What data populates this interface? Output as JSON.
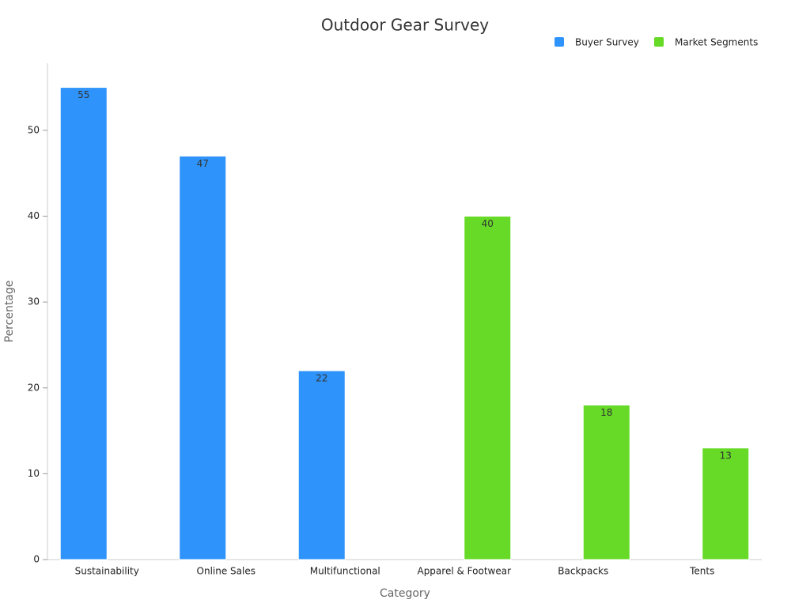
{
  "chart_data": {
    "type": "bar",
    "title": "Outdoor Gear Survey",
    "x_label": "Category",
    "y_label": "Percentage",
    "categories": [
      "Sustainability",
      "Online Sales",
      "Multifunctional",
      "Apparel & Footwear",
      "Backpacks",
      "Tents"
    ],
    "series": [
      {
        "name": "Buyer Survey",
        "color": "#2e93fa",
        "values": [
          55,
          47,
          22,
          null,
          null,
          null
        ]
      },
      {
        "name": "Market Segments",
        "color": "#66da26",
        "values": [
          null,
          null,
          null,
          40,
          18,
          13
        ]
      }
    ],
    "ylim": [
      0,
      58
    ],
    "yticks": [
      0,
      10,
      20,
      30,
      40,
      50
    ],
    "legend": "top-right",
    "grid": false
  }
}
